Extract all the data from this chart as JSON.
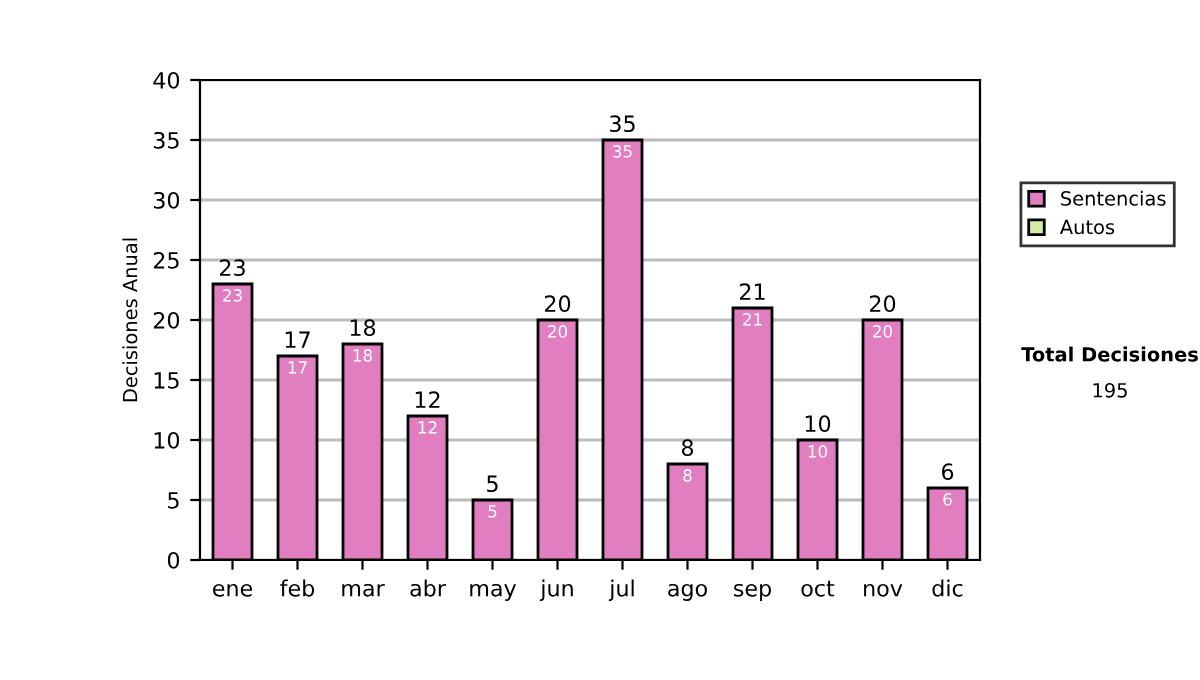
{
  "chart_data": {
    "type": "bar",
    "ylabel": "Decisiones Anual",
    "categories": [
      "ene",
      "feb",
      "mar",
      "abr",
      "may",
      "jun",
      "jul",
      "ago",
      "sep",
      "oct",
      "nov",
      "dic"
    ],
    "series": [
      {
        "name": "Sentencias",
        "color": "#e07ec0",
        "values": [
          23,
          17,
          18,
          12,
          5,
          20,
          35,
          8,
          21,
          10,
          20,
          6
        ],
        "value_labels": [
          "23",
          "17",
          "18",
          "12",
          "5",
          "20",
          "35",
          "8",
          "21",
          "10",
          "20",
          "6"
        ]
      },
      {
        "name": "Autos",
        "color": "#d4eca4",
        "values": [
          0,
          0,
          0,
          0,
          0,
          0,
          0,
          0,
          0,
          0,
          0,
          0
        ]
      }
    ],
    "stacked": true,
    "totals": [
      "23",
      "17",
      "18",
      "12",
      "5",
      "20",
      "35",
      "8",
      "21",
      "10",
      "20",
      "6"
    ],
    "ylim": [
      0,
      40
    ],
    "yticks": [
      0,
      5,
      10,
      15,
      20,
      25,
      30,
      35,
      40
    ],
    "grid": "y",
    "legend": "right",
    "annotations": [
      "Total Decisiones",
      "195"
    ]
  }
}
